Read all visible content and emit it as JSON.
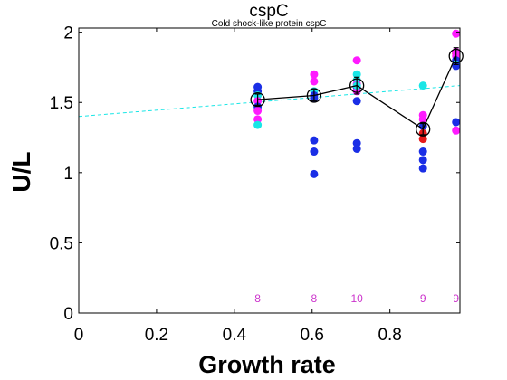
{
  "chart_data": {
    "type": "scatter",
    "title": "cspC",
    "subtitle": "Cold shock-like protein cspC",
    "xlabel": "Growth rate",
    "ylabel": "U/L",
    "xlim": [
      0,
      0.98
    ],
    "ylim": [
      0,
      2.03
    ],
    "xticks": [
      {
        "value": 0,
        "label": "0"
      },
      {
        "value": 0.2,
        "label": "0.2"
      },
      {
        "value": 0.4,
        "label": "0.4"
      },
      {
        "value": 0.6,
        "label": "0.6"
      },
      {
        "value": 0.8,
        "label": "0.8"
      }
    ],
    "yticks": [
      {
        "value": 0,
        "label": "0"
      },
      {
        "value": 0.5,
        "label": "0.5"
      },
      {
        "value": 1,
        "label": "1"
      },
      {
        "value": 1.5,
        "label": "1.5"
      },
      {
        "value": 2,
        "label": "2"
      }
    ],
    "grid": false,
    "legend": "none",
    "colors": {
      "blue": "#1a2ee6",
      "magenta": "#ff1aff",
      "cyan": "#19e6e6",
      "red": "#e61a1a",
      "mean_line": "#000000",
      "trend": "#19e6e6",
      "count_text": "#cc33cc"
    },
    "trend_line": {
      "x": [
        0,
        0.98
      ],
      "y": [
        1.4,
        1.62
      ]
    },
    "mean_line": {
      "x": [
        0.46,
        0.605,
        0.715,
        0.885,
        0.97
      ],
      "y": [
        1.52,
        1.55,
        1.62,
        1.31,
        1.83
      ],
      "err": [
        0.04,
        0.04,
        0.06,
        0.04,
        0.06
      ]
    },
    "points": [
      {
        "x": 0.46,
        "y": 1.61,
        "c": "blue"
      },
      {
        "x": 0.46,
        "y": 1.58,
        "c": "blue"
      },
      {
        "x": 0.46,
        "y": 1.55,
        "c": "cyan"
      },
      {
        "x": 0.46,
        "y": 1.51,
        "c": "magenta"
      },
      {
        "x": 0.46,
        "y": 1.47,
        "c": "blue"
      },
      {
        "x": 0.46,
        "y": 1.44,
        "c": "magenta"
      },
      {
        "x": 0.46,
        "y": 1.38,
        "c": "magenta"
      },
      {
        "x": 0.46,
        "y": 1.34,
        "c": "cyan"
      },
      {
        "x": 0.605,
        "y": 1.7,
        "c": "magenta"
      },
      {
        "x": 0.605,
        "y": 1.65,
        "c": "magenta"
      },
      {
        "x": 0.605,
        "y": 1.58,
        "c": "cyan"
      },
      {
        "x": 0.605,
        "y": 1.55,
        "c": "blue"
      },
      {
        "x": 0.605,
        "y": 1.53,
        "c": "blue"
      },
      {
        "x": 0.605,
        "y": 1.23,
        "c": "blue"
      },
      {
        "x": 0.605,
        "y": 1.15,
        "c": "blue"
      },
      {
        "x": 0.605,
        "y": 0.99,
        "c": "blue"
      },
      {
        "x": 0.715,
        "y": 1.8,
        "c": "magenta"
      },
      {
        "x": 0.715,
        "y": 1.7,
        "c": "cyan"
      },
      {
        "x": 0.715,
        "y": 1.66,
        "c": "cyan"
      },
      {
        "x": 0.715,
        "y": 1.63,
        "c": "magenta"
      },
      {
        "x": 0.715,
        "y": 1.61,
        "c": "blue"
      },
      {
        "x": 0.715,
        "y": 1.58,
        "c": "magenta"
      },
      {
        "x": 0.715,
        "y": 1.51,
        "c": "blue"
      },
      {
        "x": 0.715,
        "y": 1.21,
        "c": "blue"
      },
      {
        "x": 0.715,
        "y": 1.17,
        "c": "blue"
      },
      {
        "x": 0.715,
        "y": 1.62,
        "c": "cyan"
      },
      {
        "x": 0.885,
        "y": 1.62,
        "c": "cyan"
      },
      {
        "x": 0.885,
        "y": 1.41,
        "c": "magenta"
      },
      {
        "x": 0.885,
        "y": 1.38,
        "c": "magenta"
      },
      {
        "x": 0.885,
        "y": 1.33,
        "c": "blue"
      },
      {
        "x": 0.885,
        "y": 1.28,
        "c": "red"
      },
      {
        "x": 0.885,
        "y": 1.24,
        "c": "red"
      },
      {
        "x": 0.885,
        "y": 1.15,
        "c": "blue"
      },
      {
        "x": 0.885,
        "y": 1.09,
        "c": "blue"
      },
      {
        "x": 0.885,
        "y": 1.03,
        "c": "blue"
      },
      {
        "x": 0.97,
        "y": 1.99,
        "c": "magenta"
      },
      {
        "x": 0.97,
        "y": 1.85,
        "c": "red"
      },
      {
        "x": 0.97,
        "y": 1.83,
        "c": "magenta"
      },
      {
        "x": 0.97,
        "y": 1.8,
        "c": "blue"
      },
      {
        "x": 0.97,
        "y": 1.77,
        "c": "cyan"
      },
      {
        "x": 0.97,
        "y": 1.36,
        "c": "blue"
      },
      {
        "x": 0.97,
        "y": 1.3,
        "c": "magenta"
      },
      {
        "x": 0.97,
        "y": 1.86,
        "c": "magenta"
      },
      {
        "x": 0.97,
        "y": 1.76,
        "c": "blue"
      }
    ],
    "counts": [
      {
        "x": 0.46,
        "label": "8"
      },
      {
        "x": 0.605,
        "label": "8"
      },
      {
        "x": 0.715,
        "label": "10"
      },
      {
        "x": 0.885,
        "label": "9"
      },
      {
        "x": 0.97,
        "label": "9"
      }
    ]
  }
}
